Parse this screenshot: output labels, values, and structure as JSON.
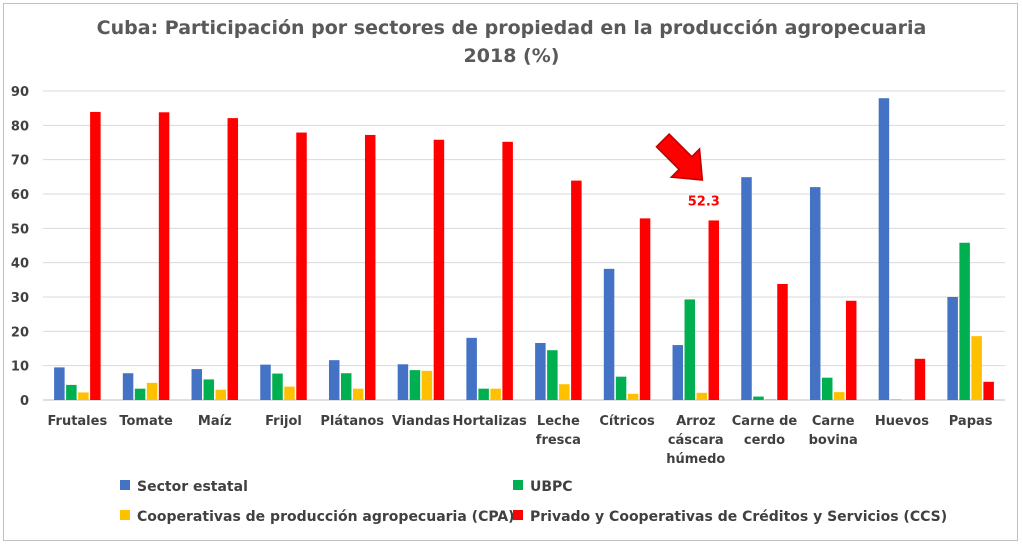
{
  "chart_data": {
    "type": "bar",
    "title": "Cuba: Participación por sectores de propiedad en la producción agropecuaria",
    "subtitle": "2018 (%)",
    "categories": [
      [
        "Frutales"
      ],
      [
        "Tomate"
      ],
      [
        "Maíz"
      ],
      [
        "Frijol"
      ],
      [
        "Plátanos"
      ],
      [
        "Viandas"
      ],
      [
        "Hortalizas"
      ],
      [
        "Leche",
        "fresca"
      ],
      [
        "Cítricos"
      ],
      [
        "Arroz",
        "cáscara",
        "húmedo"
      ],
      [
        "Carne de",
        "cerdo"
      ],
      [
        "Carne",
        "bovina"
      ],
      [
        "Huevos"
      ],
      [
        "Papas"
      ]
    ],
    "series": [
      {
        "name": "Sector estatal",
        "color": "#4472c4",
        "values": [
          9.5,
          7.8,
          9.0,
          10.3,
          11.6,
          10.4,
          18.1,
          16.6,
          38.2,
          16.0,
          64.9,
          62.0,
          87.9,
          30.0
        ]
      },
      {
        "name": "UBPC",
        "color": "#00b050",
        "values": [
          4.4,
          3.3,
          6.0,
          7.7,
          7.8,
          8.7,
          3.3,
          14.5,
          6.8,
          29.3,
          1.0,
          6.5,
          0.1,
          45.8
        ]
      },
      {
        "name": "Cooperativas de producción agropecuaria (CPA)",
        "color": "#ffc000",
        "values": [
          2.2,
          5.0,
          3.0,
          3.9,
          3.3,
          8.5,
          3.3,
          4.6,
          1.8,
          2.1,
          0.3,
          2.3,
          0.0,
          18.6
        ]
      },
      {
        "name": "Privado y Cooperativas de Créditos y Servicios (CCS)",
        "color": "#ff0000",
        "values": [
          83.9,
          83.8,
          82.1,
          77.9,
          77.2,
          75.8,
          75.2,
          63.9,
          52.9,
          52.3,
          33.8,
          28.9,
          12.0,
          5.3
        ]
      }
    ],
    "ylim": [
      0,
      90
    ],
    "yticks": [
      0,
      10,
      20,
      30,
      40,
      50,
      60,
      70,
      80,
      90
    ],
    "grid": true,
    "legend_position": "bottom",
    "annotation": {
      "text": "52.3",
      "category_index": 9,
      "marker": "red-arrow"
    }
  }
}
